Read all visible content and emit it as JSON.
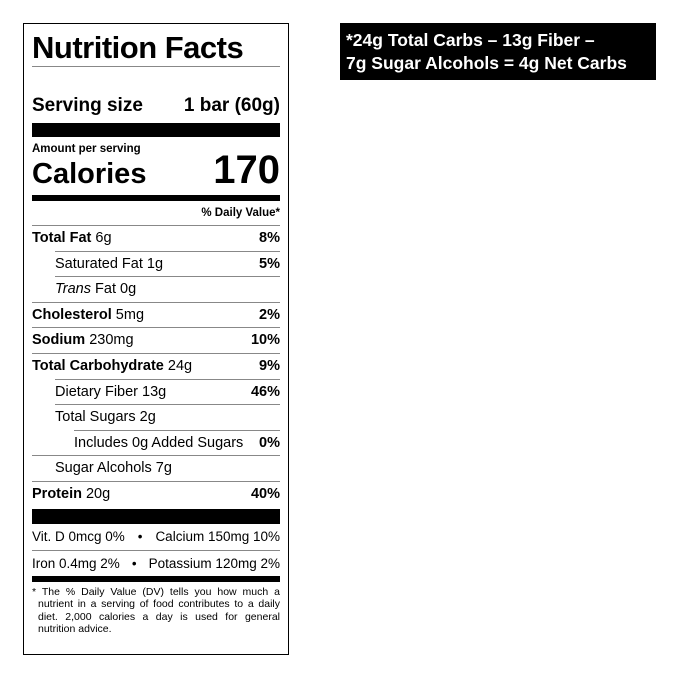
{
  "label": {
    "title": "Nutrition Facts",
    "serving_label": "Serving size",
    "serving_value": "1 bar (60g)",
    "amount_per_serving": "Amount per serving",
    "calories_label": "Calories",
    "calories_value": "170",
    "daily_value_header": "% Daily Value*",
    "nutrients": [
      {
        "name": "Total Fat",
        "amount": "6g",
        "dv": "8%"
      },
      {
        "name": "Saturated Fat",
        "amount": "1g",
        "dv": "5%"
      },
      {
        "name": "Trans",
        "suffix": "Fat 0g",
        "dv": ""
      },
      {
        "name": "Cholesterol",
        "amount": "5mg",
        "dv": "2%"
      },
      {
        "name": "Sodium",
        "amount": "230mg",
        "dv": "10%"
      },
      {
        "name": "Total Carbohydrate",
        "amount": "24g",
        "dv": "9%"
      },
      {
        "name": "Dietary Fiber",
        "amount": "13g",
        "dv": "46%"
      },
      {
        "name": "Total Sugars",
        "amount": "2g",
        "dv": ""
      },
      {
        "name": "Includes 0g Added Sugars",
        "amount": "",
        "dv": "0%"
      },
      {
        "name": "Sugar Alcohols",
        "amount": "7g",
        "dv": ""
      },
      {
        "name": "Protein",
        "amount": "20g",
        "dv": "40%"
      }
    ],
    "micros": [
      {
        "left": "Vit. D 0mcg 0%",
        "right": "Calcium 150mg 10%"
      },
      {
        "left": "Iron 0.4mg 2%",
        "right": "Potassium 120mg 2%"
      }
    ],
    "separator": "•",
    "footnote": "* The % Daily Value (DV) tells you how much a nutrient in a serving of food contributes to a daily diet. 2,000 calories a day is used for general nutrition advice."
  },
  "net_carbs": {
    "line1": "*24g Total Carbs – 13g Fiber –",
    "line2": "7g Sugar Alcohols = 4g Net Carbs"
  }
}
